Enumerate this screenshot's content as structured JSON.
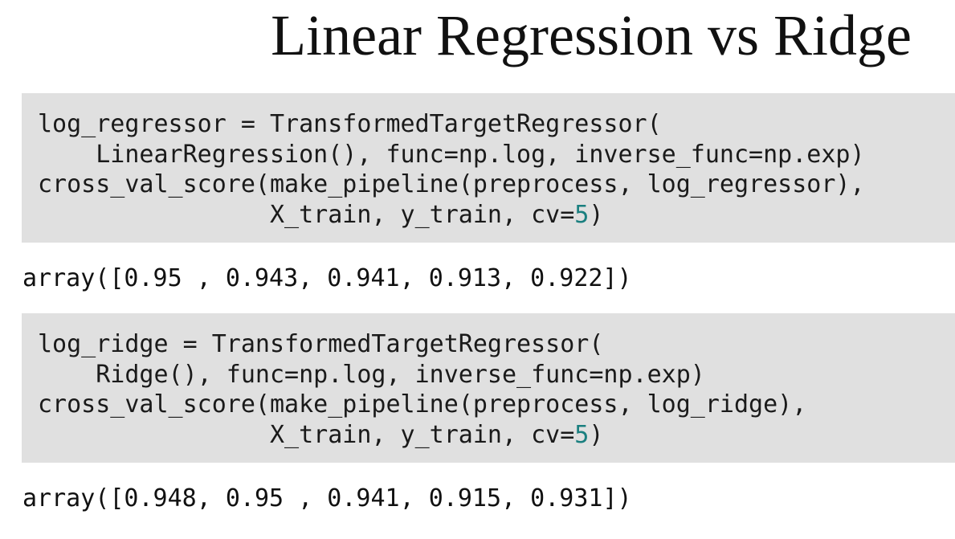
{
  "slide": {
    "title": "Linear Regression vs Ridge"
  },
  "cells": [
    {
      "code": {
        "line1": "log_regressor = TransformedTargetRegressor(",
        "line2": "    LinearRegression(), func=np.log, inverse_func=np.exp)",
        "line3": "cross_val_score(make_pipeline(preprocess, log_regressor),",
        "line4_prefix": "                X_train, y_train, cv=",
        "line4_number": "5",
        "line4_suffix": ")"
      },
      "output": "array([0.95 , 0.943, 0.941, 0.913, 0.922])"
    },
    {
      "code": {
        "line1": "log_ridge = TransformedTargetRegressor(",
        "line2": "    Ridge(), func=np.log, inverse_func=np.exp)",
        "line3": "cross_val_score(make_pipeline(preprocess, log_ridge),",
        "line4_prefix": "                X_train, y_train, cv=",
        "line4_number": "5",
        "line4_suffix": ")"
      },
      "output": "array([0.948, 0.95 , 0.941, 0.915, 0.931])"
    }
  ],
  "colors": {
    "code_background": "#e0e0e0",
    "number_literal": "#1a7f7f",
    "text": "#1a1a1a"
  }
}
